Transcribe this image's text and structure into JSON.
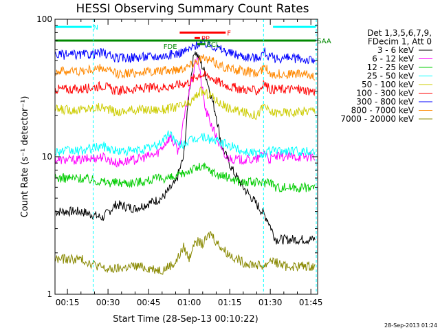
{
  "chart_data": {
    "type": "line",
    "title": "HESSI Observing Summary Count Rates",
    "xlabel": "Start Time (28-Sep-13 00:10:22)",
    "ylabel": "Count Rate (s⁻¹ detector⁻¹)",
    "y_scale": "log",
    "ylim": [
      1,
      100
    ],
    "xlim_minutes": [
      10.4,
      107.5
    ],
    "x_ticks": [
      "00:15",
      "00:30",
      "00:45",
      "01:00",
      "01:15",
      "01:30",
      "01:45"
    ],
    "x_tick_minutes": [
      15,
      30,
      45,
      60,
      75,
      90,
      105
    ],
    "y_ticks": [
      "1",
      "10",
      "100"
    ],
    "y_tick_values": [
      1,
      10,
      100
    ],
    "legend_header": [
      "Det 1,3,5,6,7,9,",
      "FDecim 1, Att 0"
    ],
    "legend_placement": "right",
    "series": [
      {
        "name": "3 - 6 keV",
        "color": "#000000",
        "x": [
          10.5,
          20,
          28,
          33,
          40,
          50,
          55,
          58,
          60,
          62,
          64,
          66,
          70,
          72,
          76,
          80,
          85,
          89,
          92,
          100,
          106
        ],
        "y": [
          4.0,
          4.0,
          3.6,
          4.5,
          4.2,
          5.0,
          6.5,
          10,
          30,
          60,
          50,
          40,
          20,
          12,
          8,
          6,
          4.5,
          3.5,
          2.5,
          2.5,
          2.5
        ]
      },
      {
        "name": "6 - 12 keV",
        "color": "#ff00ff",
        "x": [
          10.5,
          20,
          28,
          33,
          40,
          48,
          53,
          56,
          60,
          63,
          66,
          70,
          73,
          78,
          85,
          88,
          89.5,
          92,
          100,
          106
        ],
        "y": [
          9.5,
          9.5,
          10,
          9.0,
          9.5,
          10.5,
          14,
          11,
          30,
          55,
          22,
          14,
          10,
          9.5,
          9.5,
          11,
          9.5,
          10,
          10,
          10
        ]
      },
      {
        "name": "12 - 25 keV",
        "color": "#00cc00",
        "x": [
          10.5,
          20,
          30,
          40,
          50,
          55,
          60,
          65,
          70,
          75,
          80,
          88,
          89.5,
          92,
          100,
          106
        ],
        "y": [
          7.0,
          7.0,
          6.5,
          6.5,
          7.0,
          7.0,
          8.0,
          8.5,
          7.5,
          7.0,
          6.5,
          6.5,
          6.8,
          6.0,
          6.0,
          6.0
        ]
      },
      {
        "name": "25 - 50 keV",
        "color": "#00ffff",
        "x": [
          10.5,
          20,
          28,
          33,
          40,
          48,
          53,
          56,
          60,
          65,
          70,
          75,
          80,
          88,
          89.5,
          92,
          100,
          106
        ],
        "y": [
          11,
          11,
          12,
          11,
          11,
          12,
          15,
          12,
          13,
          14,
          13,
          12,
          11,
          10.5,
          11,
          11,
          11,
          11
        ]
      },
      {
        "name": "50 - 100 keV",
        "color": "#cccc00",
        "x": [
          10.5,
          20,
          28,
          33,
          40,
          50,
          55,
          60,
          64,
          68,
          72,
          76,
          80,
          85,
          88,
          89.5,
          92,
          100,
          106
        ],
        "y": [
          22,
          22,
          23,
          21,
          22,
          22,
          23,
          24,
          30,
          28,
          24,
          22,
          21,
          20,
          24,
          21,
          21,
          21,
          22
        ]
      },
      {
        "name": "100 - 300 keV",
        "color": "#ff0000",
        "x": [
          10.5,
          20,
          28,
          33,
          40,
          50,
          55,
          60,
          64,
          68,
          72,
          76,
          80,
          85,
          88,
          89.5,
          92,
          100,
          106
        ],
        "y": [
          31,
          31,
          33,
          30,
          31,
          32,
          33,
          35,
          40,
          38,
          34,
          32,
          31,
          30,
          34,
          31,
          31,
          31,
          30
        ]
      },
      {
        "name": "300 - 800 keV",
        "color": "#0000ff",
        "x": [
          10.5,
          20,
          28,
          33,
          40,
          50,
          55,
          60,
          64,
          68,
          72,
          76,
          80,
          85,
          88,
          89.5,
          92,
          100,
          106
        ],
        "y": [
          55,
          55,
          57,
          52,
          53,
          54,
          56,
          60,
          68,
          65,
          60,
          56,
          54,
          52,
          58,
          53,
          52,
          52,
          50
        ]
      },
      {
        "name": "800 - 7000 keV",
        "color": "#ff8800",
        "x": [
          10.5,
          20,
          28,
          33,
          40,
          50,
          55,
          60,
          64,
          68,
          72,
          76,
          80,
          85,
          88,
          89.5,
          92,
          100,
          106
        ],
        "y": [
          42,
          42,
          44,
          40,
          41,
          42,
          43,
          46,
          52,
          50,
          46,
          43,
          42,
          40,
          45,
          41,
          40,
          40,
          39
        ]
      },
      {
        "name": "7000 - 20000 keV",
        "color": "#888800",
        "x": [
          10.5,
          20,
          30,
          40,
          50,
          55,
          58,
          60,
          62,
          65,
          68,
          70,
          74,
          80,
          88,
          90,
          95,
          100,
          106
        ],
        "y": [
          1.8,
          1.8,
          1.5,
          1.6,
          1.5,
          1.7,
          2.2,
          1.8,
          2.5,
          2.3,
          2.8,
          2.4,
          2.0,
          1.7,
          1.6,
          1.8,
          1.6,
          1.6,
          1.6
        ]
      }
    ],
    "flag_bars": [
      {
        "label": "N",
        "color": "#00ffff",
        "x_start": 10.6,
        "x_end": 24,
        "y": 88
      },
      {
        "label": "",
        "color": "#00ffff",
        "x_start": 91,
        "x_end": 106.8,
        "y": 88
      },
      {
        "label": "F",
        "color": "#ff0000",
        "x_start": 56.5,
        "x_end": 73.5,
        "y": 80
      },
      {
        "label": "PP",
        "color": "#ff0000",
        "x_start": 62,
        "x_end": 64,
        "y": 73
      },
      {
        "label": "SAA",
        "color": "#008800",
        "x_start": 10.6,
        "x_end": 106.8,
        "y": 70
      },
      {
        "label": "ECL",
        "color": "#008800",
        "x_start": 63,
        "x_end": 66,
        "y": 66
      }
    ],
    "flag_labels_extra": [
      {
        "text": "FDE",
        "color": "#008800",
        "x": 50.5,
        "y": 64
      }
    ],
    "grid": false,
    "timestamp": "28-Sep-2013 01:24"
  }
}
